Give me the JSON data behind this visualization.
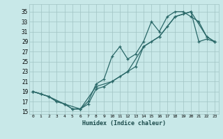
{
  "xlabel": "Humidex (Indice chaleur)",
  "background_color": "#c8e8e8",
  "grid_color": "#a0c4c4",
  "line_color": "#2a6868",
  "xlim": [
    -0.5,
    23.5
  ],
  "ylim": [
    14.5,
    36.5
  ],
  "xticks": [
    0,
    1,
    2,
    3,
    4,
    5,
    6,
    7,
    8,
    9,
    10,
    11,
    12,
    13,
    14,
    15,
    16,
    17,
    18,
    19,
    20,
    21,
    22,
    23
  ],
  "yticks": [
    15,
    17,
    19,
    21,
    23,
    25,
    27,
    29,
    31,
    33,
    35
  ],
  "series1_x": [
    0,
    1,
    2,
    3,
    4,
    5,
    6,
    7,
    8,
    9,
    10,
    11,
    12,
    13,
    14,
    15,
    16,
    17,
    18,
    19,
    20,
    21,
    22,
    23
  ],
  "series1_y": [
    19,
    18.5,
    18,
    17,
    16.5,
    15.5,
    15.5,
    16.5,
    19.5,
    20,
    21,
    22,
    23,
    24,
    28,
    29,
    30,
    32,
    34,
    34.5,
    35,
    29,
    29.5,
    29
  ],
  "series2_x": [
    0,
    1,
    2,
    3,
    4,
    5,
    6,
    7,
    8,
    9,
    10,
    11,
    12,
    13,
    14,
    15,
    16,
    17,
    18,
    19,
    20,
    21,
    22,
    23
  ],
  "series2_y": [
    19,
    18.5,
    18,
    17,
    16.5,
    15.5,
    15.5,
    17,
    20.5,
    21.5,
    26,
    28,
    25.5,
    26.5,
    29,
    33,
    31,
    34,
    35,
    35,
    34,
    33,
    30,
    29
  ],
  "series3_x": [
    0,
    2,
    4,
    6,
    8,
    10,
    12,
    14,
    16,
    18,
    20,
    22,
    23
  ],
  "series3_y": [
    19,
    18,
    16.5,
    15.5,
    20,
    21,
    23,
    28,
    30,
    34,
    35,
    30,
    29
  ]
}
